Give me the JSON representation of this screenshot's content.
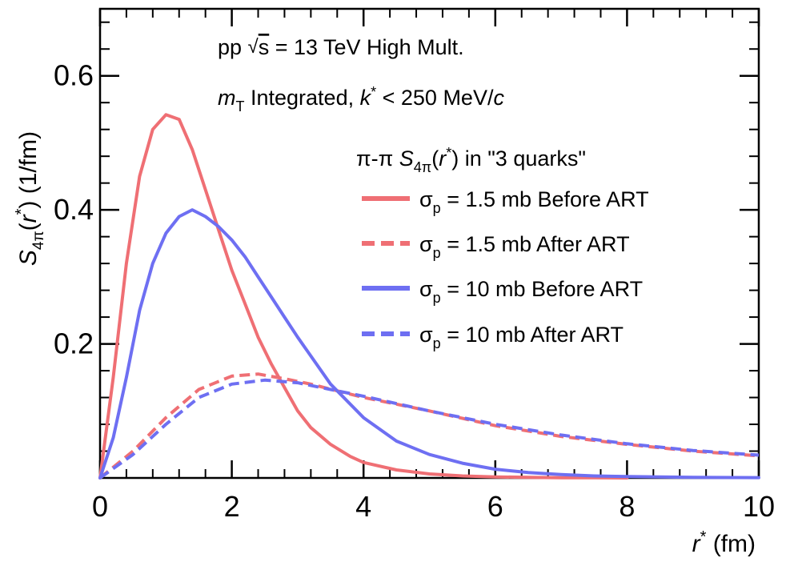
{
  "chart_data": {
    "type": "line",
    "xlabel": {
      "var": "r",
      "sup": "*",
      "unit": " (fm)"
    },
    "ylabel": {
      "var": "S",
      "sub": "4π",
      "arg_open": "(",
      "arg_var": "r",
      "arg_sup": "*",
      "arg_close": ")",
      "unit": " (1/fm)"
    },
    "xlim": [
      0,
      10
    ],
    "ylim": [
      0,
      0.7
    ],
    "x_ticks": [
      0,
      2,
      4,
      6,
      8,
      10
    ],
    "x_tick_labels": [
      "0",
      "2",
      "4",
      "6",
      "8",
      "10"
    ],
    "y_ticks": [
      0.2,
      0.4,
      0.6
    ],
    "y_tick_labels": [
      "0.2",
      "0.4",
      "0.6"
    ],
    "annotations": {
      "line1_a": "pp ",
      "line1_sqrt": "√",
      "line1_s": "s",
      "line1_b": " = 13 TeV High Mult.",
      "line2_m": "m",
      "line2_T": "T",
      "line2_a": " Integrated, ",
      "line2_k": "k",
      "line2_star": "*",
      "line2_b": " < 250 MeV/",
      "line2_c": "c"
    },
    "legend": {
      "title_a": "π-π ",
      "title_S": "S",
      "title_sub": "4π",
      "title_b": "(",
      "title_r": "r",
      "title_star": "*",
      "title_c": ") in \"3 quarks\"",
      "placement": "top-right"
    },
    "series": [
      {
        "name": "σp = 1.5 mb Before ART",
        "label_sigma": "σ",
        "label_sub": "p",
        "label_rest": " = 1.5 mb Before ART",
        "color": "#ef6f74",
        "dash": "solid",
        "x": [
          0,
          0.2,
          0.4,
          0.6,
          0.8,
          1.0,
          1.2,
          1.4,
          1.6,
          1.8,
          2.0,
          2.2,
          2.4,
          2.6,
          2.8,
          3.0,
          3.2,
          3.5,
          3.8,
          4.0,
          4.5,
          5.0,
          5.5,
          6.0,
          6.5,
          7.0,
          7.5,
          8.0
        ],
        "y": [
          0,
          0.15,
          0.32,
          0.45,
          0.52,
          0.542,
          0.535,
          0.49,
          0.43,
          0.37,
          0.31,
          0.26,
          0.21,
          0.17,
          0.135,
          0.1,
          0.075,
          0.05,
          0.032,
          0.023,
          0.012,
          0.006,
          0.003,
          0.0015,
          0.0008,
          0.0004,
          0.0002,
          0
        ]
      },
      {
        "name": "σp = 1.5 mb After ART",
        "label_sigma": "σ",
        "label_sub": "p",
        "label_rest": " = 1.5 mb After ART",
        "color": "#ef6f74",
        "dash": "dashed",
        "x": [
          0,
          0.5,
          1.0,
          1.5,
          2.0,
          2.4,
          2.8,
          3.2,
          3.6,
          4.0,
          5.0,
          6.0,
          7.0,
          8.0,
          9.0,
          10.0
        ],
        "y": [
          0,
          0.04,
          0.09,
          0.132,
          0.152,
          0.155,
          0.148,
          0.14,
          0.13,
          0.12,
          0.1,
          0.078,
          0.062,
          0.05,
          0.04,
          0.033
        ]
      },
      {
        "name": "σp = 10 mb  Before ART",
        "label_sigma": "σ",
        "label_sub": "p",
        "label_rest": " = 10 mb  Before ART",
        "color": "#6e6ff2",
        "dash": "solid",
        "x": [
          0,
          0.2,
          0.4,
          0.6,
          0.8,
          1.0,
          1.2,
          1.4,
          1.6,
          1.8,
          2.0,
          2.2,
          2.4,
          2.6,
          2.8,
          3.0,
          3.5,
          4.0,
          4.5,
          5.0,
          5.5,
          6.0,
          6.5,
          7.0,
          7.5,
          8.0,
          9.0,
          10.0
        ],
        "y": [
          0,
          0.06,
          0.15,
          0.25,
          0.32,
          0.365,
          0.39,
          0.4,
          0.39,
          0.375,
          0.355,
          0.33,
          0.3,
          0.27,
          0.24,
          0.21,
          0.14,
          0.09,
          0.055,
          0.035,
          0.022,
          0.013,
          0.008,
          0.005,
          0.003,
          0.002,
          0.001,
          0.0005
        ]
      },
      {
        "name": "σp = 10 mb  After ART",
        "label_sigma": "σ",
        "label_sub": "p",
        "label_rest": " = 10 mb  After ART",
        "color": "#6e6ff2",
        "dash": "dashed",
        "x": [
          0,
          0.5,
          1.0,
          1.5,
          2.0,
          2.5,
          3.0,
          3.5,
          4.0,
          5.0,
          6.0,
          7.0,
          8.0,
          9.0,
          10.0
        ],
        "y": [
          0,
          0.035,
          0.08,
          0.12,
          0.14,
          0.146,
          0.142,
          0.132,
          0.122,
          0.1,
          0.08,
          0.064,
          0.051,
          0.041,
          0.034
        ]
      }
    ]
  }
}
